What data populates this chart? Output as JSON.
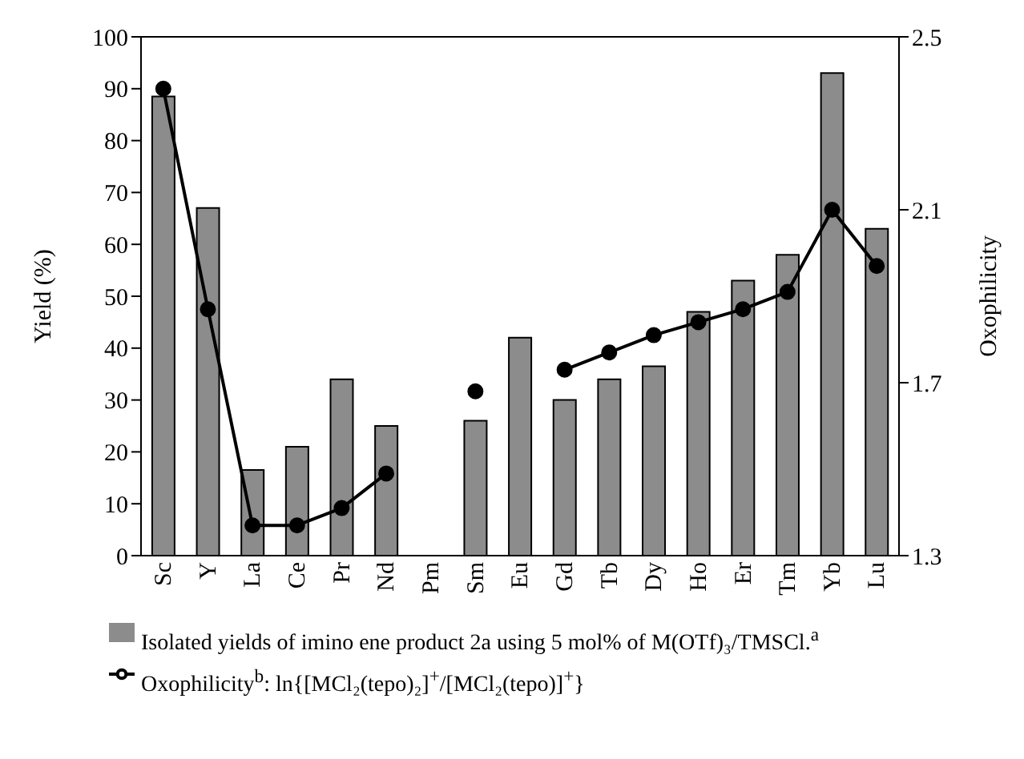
{
  "chart_data": {
    "type": "bar",
    "ylabel": "Yield (%)",
    "y2label": "Oxophilicity",
    "categories": [
      "Sc",
      "Y",
      "La",
      "Ce",
      "Pr",
      "Nd",
      "Pm",
      "Sm",
      "Eu",
      "Gd",
      "Tb",
      "Dy",
      "Ho",
      "Er",
      "Tm",
      "Yb",
      "Lu"
    ],
    "series": [
      {
        "name": "Isolated yields of imino ene product 2a using 5 mol% of M(OTf)₃/TMSCl.$^{a}$",
        "type": "bar",
        "color": "#8c8c8c",
        "values": [
          88.5,
          67,
          16.5,
          21,
          34,
          25,
          null,
          26,
          42,
          30,
          34,
          36.5,
          47,
          53,
          58,
          93,
          63
        ]
      },
      {
        "name": "Oxophilicity$^{b}$: ln{[MCl₂(tepo)₂]$^{+}$/[MCl₂(tepo)]$^{+}$}",
        "type": "line",
        "axis": "y2",
        "color": "#000000",
        "marker": "circle",
        "values": [
          2.38,
          1.87,
          1.37,
          1.37,
          1.41,
          1.49,
          null,
          1.68,
          null,
          1.73,
          1.77,
          1.81,
          1.84,
          1.87,
          1.91,
          2.1,
          1.97
        ]
      }
    ],
    "ylim": [
      0,
      100
    ],
    "yticks": [
      0,
      10,
      20,
      30,
      40,
      50,
      60,
      70,
      80,
      90,
      100
    ],
    "y2lim": [
      1.3,
      2.5
    ],
    "y2ticks": [
      1.3,
      1.7,
      2.1,
      2.5
    ],
    "grid": false,
    "legend": "bottom"
  }
}
